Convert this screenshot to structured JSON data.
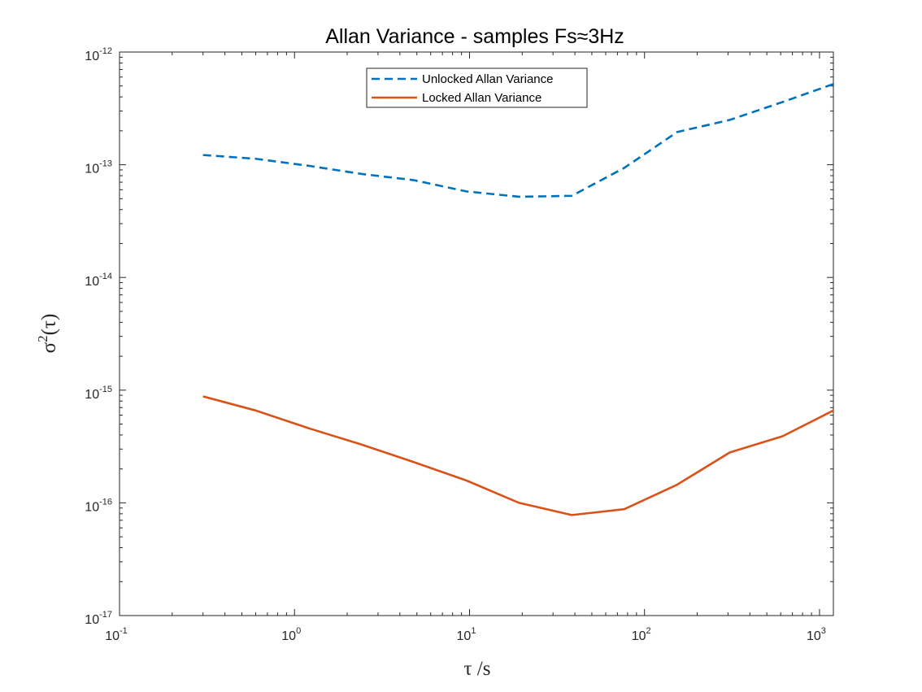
{
  "chart_data": {
    "type": "line",
    "title": "Allan Variance - samples Fs≈3Hz",
    "xlabel": "τ /s",
    "ylabel": "σ²(τ)",
    "xscale": "log",
    "yscale": "log",
    "xlim": [
      0.1,
      1200
    ],
    "ylim": [
      1e-17,
      1e-12
    ],
    "xticks": [
      {
        "base": "10",
        "exp": "-1"
      },
      {
        "base": "10",
        "exp": "0"
      },
      {
        "base": "10",
        "exp": "1"
      },
      {
        "base": "10",
        "exp": "2"
      },
      {
        "base": "10",
        "exp": "3"
      }
    ],
    "yticks": [
      {
        "base": "10",
        "exp": "-17"
      },
      {
        "base": "10",
        "exp": "-16"
      },
      {
        "base": "10",
        "exp": "-15"
      },
      {
        "base": "10",
        "exp": "-14"
      },
      {
        "base": "10",
        "exp": "-13"
      },
      {
        "base": "10",
        "exp": "-12"
      }
    ],
    "grid": false,
    "legend_position": "top-center",
    "series": [
      {
        "name": "Unlocked Allan Variance",
        "color": "#0072BD",
        "style": "dashed",
        "x": [
          0.3,
          0.6,
          1.2,
          2.4,
          4.8,
          9.6,
          19.2,
          38.4,
          76.8,
          153.6,
          307.2,
          614.4,
          1200
        ],
        "y": [
          1.22e-13,
          1.13e-13,
          9.8e-14,
          8.3e-14,
          7.3e-14,
          5.8e-14,
          5.2e-14,
          5.3e-14,
          9.4e-14,
          1.95e-13,
          2.5e-13,
          3.6e-13,
          5.2e-13
        ]
      },
      {
        "name": "Locked Allan Variance",
        "color": "#D95319",
        "style": "solid",
        "x": [
          0.3,
          0.6,
          1.2,
          2.4,
          4.8,
          9.6,
          19.2,
          38.4,
          76.8,
          153.6,
          307.2,
          614.4,
          1200
        ],
        "y": [
          8.8e-16,
          6.6e-16,
          4.6e-16,
          3.3e-16,
          2.3e-16,
          1.58e-16,
          1e-16,
          7.8e-17,
          8.8e-17,
          1.45e-16,
          2.8e-16,
          3.9e-16,
          6.6e-16
        ]
      }
    ]
  }
}
